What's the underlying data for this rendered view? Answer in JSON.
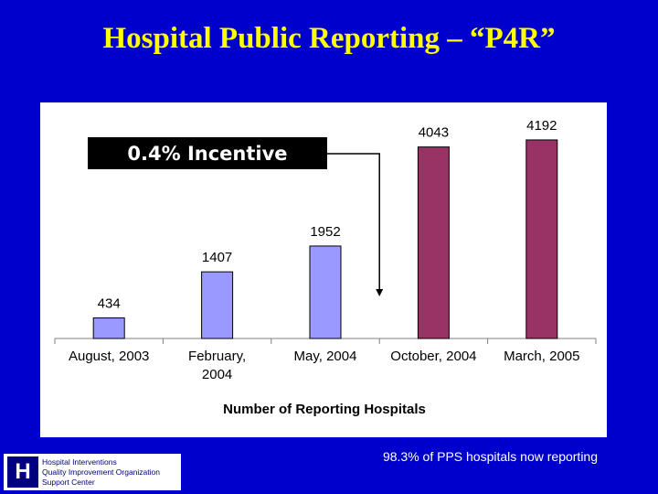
{
  "slide": {
    "title": "Hospital Public Reporting – “P4R”",
    "incentive_label": "0.4% Incentive",
    "footer_note": "98.3% of PPS hospitals now reporting",
    "logo": {
      "mark": "H",
      "lines": [
        "Hospital Interventions",
        "Quality Improvement Organization",
        "Support Center"
      ]
    }
  },
  "chart_data": {
    "type": "bar",
    "categories": [
      [
        "August, 2003"
      ],
      [
        "February,",
        "2004"
      ],
      [
        "May, 2004"
      ],
      [
        "October, 2004"
      ],
      [
        "March, 2005"
      ]
    ],
    "values": [
      434,
      1407,
      1952,
      4043,
      4192
    ],
    "bar_colors": [
      "#9999ff",
      "#9999ff",
      "#9999ff",
      "#993366",
      "#993366"
    ],
    "xlabel": "Number of Reporting Hospitals",
    "ylim": [
      0,
      4500
    ]
  }
}
